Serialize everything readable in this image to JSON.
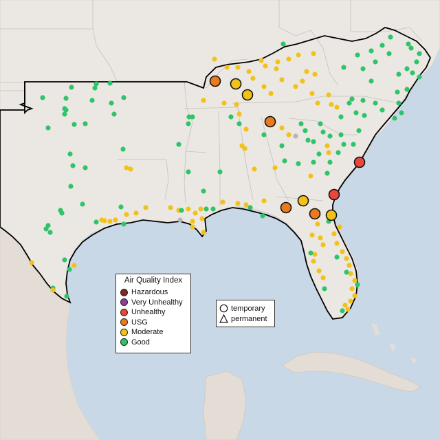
{
  "legend": {
    "title": "Air Quality Index",
    "categories": [
      {
        "label": "Hazardous",
        "color": "#7e2a20"
      },
      {
        "label": "Very Unhealthy",
        "color": "#8f3f97"
      },
      {
        "label": "Unhealthy",
        "color": "#e8473a"
      },
      {
        "label": "USG",
        "color": "#ea7b1c"
      },
      {
        "label": "Moderate",
        "color": "#f2c21a"
      },
      {
        "label": "Good",
        "color": "#2fc46a"
      }
    ]
  },
  "shape_legend": {
    "temporary_label": "temporary",
    "permanent_label": "permanent"
  },
  "colors": {
    "water": "#c9d8e6",
    "land": "#ebe7e3",
    "no_data": "#b5b5b5"
  }
}
